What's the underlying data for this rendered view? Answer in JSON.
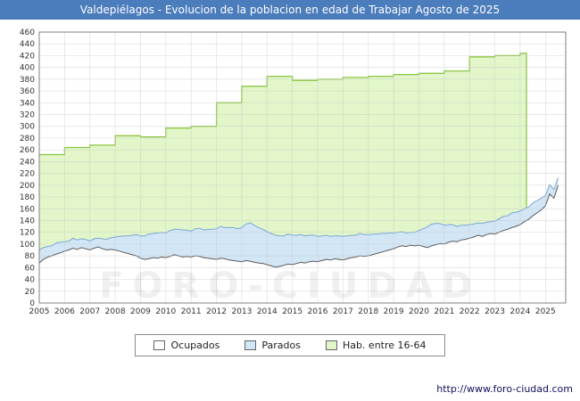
{
  "title": "Valdepiélagos - Evolucion de la poblacion en edad de Trabajar Agosto de 2025",
  "watermark": "FORO-CIUDAD",
  "footer": {
    "url": "http://www.foro-ciudad.com"
  },
  "colors": {
    "title_bar": "#4b7cbb",
    "grid": "#c8c8c8",
    "plot_border": "#808080"
  },
  "legend": [
    {
      "label": "Ocupados",
      "fill": "#ffffff",
      "stroke": "#5a5a5a"
    },
    {
      "label": "Parados",
      "fill": "#d2e6f6",
      "stroke": "#7aa8d4"
    },
    {
      "label": "Hab. entre 16-64",
      "fill": "#e2f6ca",
      "stroke": "#8cc641"
    }
  ],
  "chart_data": {
    "type": "area",
    "title": "Valdepiélagos - Evolucion de la poblacion en edad de Trabajar Agosto de 2025",
    "xlabel": "",
    "ylabel": "",
    "xlim": [
      2005,
      2025.8
    ],
    "ylim": [
      0,
      460
    ],
    "y_tick_step": 20,
    "x_ticks": [
      2005,
      2006,
      2007,
      2008,
      2009,
      2010,
      2011,
      2012,
      2013,
      2014,
      2015,
      2016,
      2017,
      2018,
      2019,
      2020,
      2021,
      2022,
      2023,
      2024,
      2025
    ],
    "x_start": 2005,
    "x_step": 0.1666667,
    "grid": true,
    "legend_position": "bottom",
    "series": [
      {
        "name": "Hab. entre 16-64",
        "mode": "step",
        "fill": "#e2f6ca",
        "stroke": "#8cc641",
        "years": [
          2005,
          2006,
          2007,
          2008,
          2009,
          2010,
          2011,
          2012,
          2013,
          2014,
          2015,
          2016,
          2017,
          2018,
          2019,
          2020,
          2021,
          2022,
          2023,
          2024
        ],
        "values": [
          252,
          264,
          268,
          284,
          282,
          297,
          300,
          340,
          368,
          385,
          378,
          380,
          383,
          385,
          388,
          390,
          394,
          418,
          420,
          424
        ],
        "x_end": 2024.25
      },
      {
        "name": "Ocupados",
        "mode": "line",
        "fill": "#ffffff",
        "stroke": "#5a5a5a",
        "values": [
          68,
          74,
          78,
          80,
          83,
          85,
          88,
          90,
          93,
          91,
          94,
          92,
          90,
          93,
          95,
          92,
          90,
          91,
          90,
          88,
          86,
          84,
          82,
          80,
          76,
          74,
          75,
          77,
          76,
          78,
          77,
          79,
          82,
          80,
          78,
          79,
          78,
          80,
          79,
          77,
          76,
          75,
          74,
          76,
          75,
          73,
          72,
          71,
          70,
          72,
          71,
          69,
          68,
          67,
          65,
          63,
          61,
          62,
          64,
          66,
          65,
          67,
          69,
          68,
          70,
          71,
          70,
          72,
          74,
          73,
          75,
          74,
          73,
          75,
          77,
          78,
          80,
          79,
          80,
          82,
          84,
          86,
          88,
          90,
          92,
          95,
          97,
          96,
          98,
          97,
          98,
          96,
          94,
          97,
          99,
          101,
          100,
          103,
          105,
          104,
          107,
          108,
          110,
          112,
          115,
          113,
          116,
          118,
          117,
          120,
          123,
          125,
          128,
          130,
          133,
          138,
          142,
          148,
          153,
          158,
          165,
          185,
          178,
          200
        ]
      },
      {
        "name": "Parados",
        "mode": "stacked-on-ocupados",
        "fill": "#d2e6f6",
        "stroke": "#7aa8d4",
        "values": [
          22,
          20,
          18,
          17,
          19,
          18,
          16,
          15,
          17,
          16,
          15,
          16,
          15,
          16,
          15,
          17,
          18,
          20,
          22,
          25,
          28,
          30,
          33,
          36,
          38,
          40,
          42,
          41,
          43,
          42,
          42,
          44,
          43,
          45,
          46,
          45,
          44,
          46,
          48,
          47,
          49,
          50,
          52,
          54,
          53,
          55,
          56,
          55,
          58,
          62,
          65,
          63,
          60,
          58,
          56,
          55,
          54,
          52,
          50,
          51,
          50,
          48,
          47,
          46,
          45,
          44,
          43,
          42,
          41,
          40,
          39,
          40,
          40,
          39,
          38,
          37,
          38,
          37,
          36,
          35,
          33,
          32,
          30,
          29,
          27,
          25,
          24,
          23,
          22,
          23,
          25,
          30,
          35,
          37,
          36,
          34,
          32,
          30,
          28,
          26,
          25,
          24,
          23,
          22,
          21,
          22,
          21,
          20,
          22,
          23,
          24,
          23,
          25,
          24,
          23,
          22,
          21,
          22,
          21,
          20,
          18,
          16,
          15,
          13
        ]
      }
    ]
  }
}
